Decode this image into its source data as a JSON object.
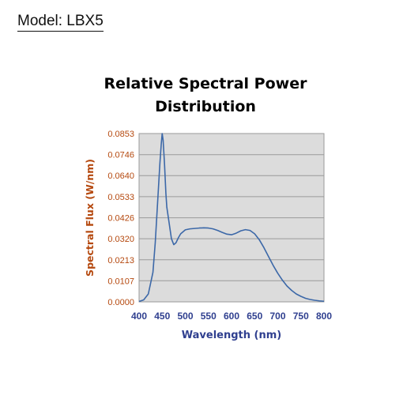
{
  "header": {
    "model_label": "Model: LBX5"
  },
  "chart_data": {
    "type": "line",
    "title": "Relative Spectral Power Distribution",
    "xlabel": "Wavelength (nm)",
    "ylabel": "Spectral Flux (W/nm)",
    "xlim": [
      400,
      800
    ],
    "ylim": [
      0,
      0.0853
    ],
    "xticks": [
      400,
      450,
      500,
      550,
      600,
      650,
      700,
      750,
      800
    ],
    "yticks": [
      "0.0000",
      "0.0107",
      "0.0213",
      "0.0320",
      "0.0426",
      "0.0533",
      "0.0640",
      "0.0746",
      "0.0853"
    ],
    "grid": "horizontal",
    "plot_background": "#dcdcdc",
    "line_color": "#3c68a8",
    "series": [
      {
        "x": [
          400,
          410,
          420,
          430,
          435,
          440,
          445,
          448,
          450,
          452,
          455,
          458,
          460,
          465,
          470,
          475,
          480,
          485,
          490,
          500,
          510,
          520,
          530,
          540,
          550,
          560,
          570,
          580,
          590,
          600,
          610,
          620,
          630,
          640,
          650,
          660,
          670,
          680,
          690,
          700,
          710,
          720,
          730,
          740,
          750,
          760,
          770,
          780,
          790,
          800
        ],
        "y": [
          0.0002,
          0.001,
          0.004,
          0.015,
          0.03,
          0.05,
          0.07,
          0.08,
          0.0853,
          0.082,
          0.07,
          0.055,
          0.048,
          0.04,
          0.032,
          0.029,
          0.03,
          0.0325,
          0.0345,
          0.0365,
          0.037,
          0.0372,
          0.0374,
          0.0375,
          0.0374,
          0.037,
          0.0362,
          0.0352,
          0.0343,
          0.034,
          0.0348,
          0.036,
          0.0366,
          0.0362,
          0.0345,
          0.0315,
          0.0275,
          0.023,
          0.0185,
          0.0145,
          0.011,
          0.008,
          0.0058,
          0.004,
          0.0028,
          0.0018,
          0.0012,
          0.0008,
          0.0005,
          0.0003
        ]
      }
    ]
  }
}
